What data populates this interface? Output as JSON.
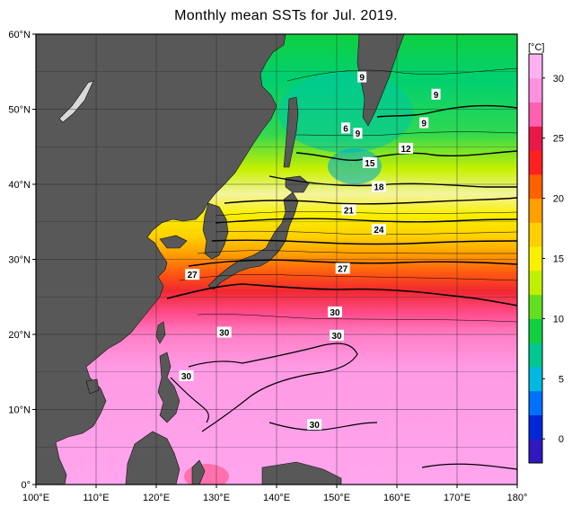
{
  "title": "Monthly mean SSTs for Jul. 2019.",
  "map": {
    "region": "Western North Pacific",
    "lon_range": [
      100,
      180
    ],
    "lat_range": [
      0,
      60
    ],
    "x_ticks": [
      "100°E",
      "110°E",
      "120°E",
      "130°E",
      "140°E",
      "150°E",
      "160°E",
      "170°E",
      "180°"
    ],
    "y_ticks": [
      "0°",
      "10°N",
      "20°N",
      "30°N",
      "40°N",
      "50°N",
      "60°N"
    ],
    "land_color": "#585858",
    "isotherm_labels": [
      {
        "value": "9",
        "lon": 154.2,
        "lat": 54.3
      },
      {
        "value": "9",
        "lon": 166.5,
        "lat": 52.0
      },
      {
        "value": "9",
        "lon": 164.5,
        "lat": 48.2
      },
      {
        "value": "9",
        "lon": 153.5,
        "lat": 46.8
      },
      {
        "value": "6",
        "lon": 151.5,
        "lat": 47.5
      },
      {
        "value": "12",
        "lon": 161.5,
        "lat": 44.8
      },
      {
        "value": "15",
        "lon": 155.5,
        "lat": 42.9
      },
      {
        "value": "18",
        "lon": 157.0,
        "lat": 39.7
      },
      {
        "value": "21",
        "lon": 152.0,
        "lat": 36.6
      },
      {
        "value": "24",
        "lon": 157.0,
        "lat": 34.0
      },
      {
        "value": "27",
        "lon": 151.0,
        "lat": 28.8
      },
      {
        "value": "27",
        "lon": 126.0,
        "lat": 28.0
      },
      {
        "value": "30",
        "lon": 149.7,
        "lat": 23.0
      },
      {
        "value": "30",
        "lon": 150.0,
        "lat": 19.9
      },
      {
        "value": "30",
        "lon": 131.3,
        "lat": 20.3
      },
      {
        "value": "30",
        "lon": 125.0,
        "lat": 14.5
      },
      {
        "value": "30",
        "lon": 146.3,
        "lat": 8.0
      }
    ]
  },
  "colorbar": {
    "unit": "[°C]",
    "ticks": [
      "0",
      "5",
      "10",
      "15",
      "20",
      "25",
      "30"
    ],
    "tick_values": [
      0,
      5,
      10,
      15,
      20,
      25,
      30
    ],
    "range": [
      -2,
      32
    ],
    "colors": [
      "#3018c0",
      "#0028d8",
      "#0070ff",
      "#00b8e0",
      "#00c890",
      "#10d040",
      "#60e020",
      "#c0f000",
      "#f8f000",
      "#ffd000",
      "#ffa000",
      "#ff6000",
      "#ff2020",
      "#e81848",
      "#ff60b0",
      "#ff90e0",
      "#ffb0f0"
    ]
  }
}
